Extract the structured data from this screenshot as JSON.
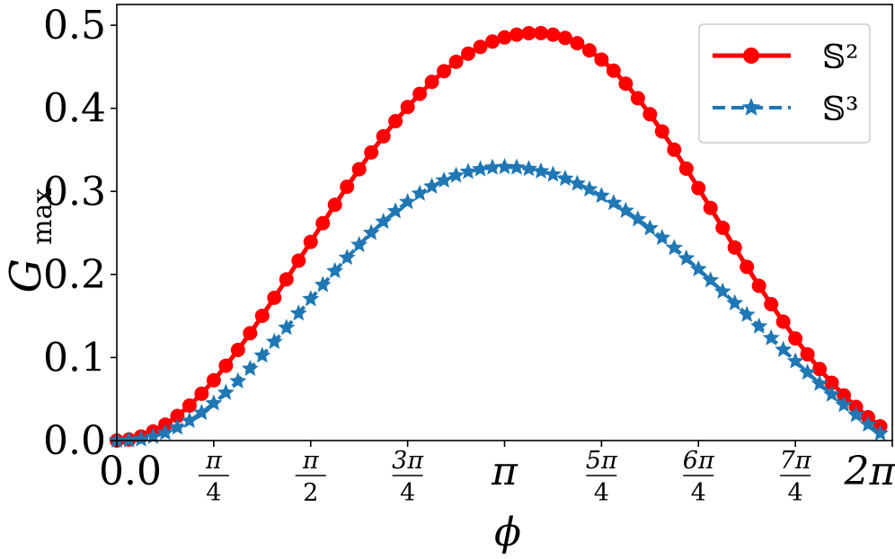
{
  "chart_data": {
    "type": "line",
    "title": "",
    "xlabel": "ϕ",
    "ylabel_main": "G",
    "ylabel_sub": "max",
    "xlim": [
      0,
      6.2832
    ],
    "ylim": [
      0,
      0.525
    ],
    "grid": false,
    "legend_placement": "top-right",
    "x_ticks": [
      {
        "value": 0,
        "text": "0.0"
      },
      {
        "value": 0.7854,
        "num": "π",
        "den": "4"
      },
      {
        "value": 1.5708,
        "num": "π",
        "den": "2"
      },
      {
        "value": 2.3562,
        "num": "3π",
        "den": "4"
      },
      {
        "value": 3.1416,
        "text": "π"
      },
      {
        "value": 3.927,
        "num": "5π",
        "den": "4"
      },
      {
        "value": 4.7124,
        "num": "6π",
        "den": "4"
      },
      {
        "value": 5.4978,
        "num": "7π",
        "den": "4"
      },
      {
        "value": 6.2832,
        "text": "2π"
      }
    ],
    "y_ticks": [
      {
        "value": 0.0,
        "text": "0.0"
      },
      {
        "value": 0.1,
        "text": "0.1"
      },
      {
        "value": 0.2,
        "text": "0.2"
      },
      {
        "value": 0.3,
        "text": "0.3"
      },
      {
        "value": 0.4,
        "text": "0.4"
      },
      {
        "value": 0.5,
        "text": "0.5"
      }
    ],
    "series": [
      {
        "name": "𝕊²",
        "color": "#ff0000",
        "line_style": "solid",
        "marker": "circle",
        "x_range": [
          0,
          6.2832
        ],
        "n_points": 64,
        "values": [
          0.0,
          0.0012,
          0.0049,
          0.0109,
          0.0192,
          0.0296,
          0.0421,
          0.0564,
          0.0725,
          0.0901,
          0.1091,
          0.1292,
          0.1502,
          0.1719,
          0.1941,
          0.2166,
          0.2392,
          0.2617,
          0.2839,
          0.3056,
          0.3267,
          0.3469,
          0.3663,
          0.3845,
          0.4016,
          0.4174,
          0.4318,
          0.4447,
          0.456,
          0.4658,
          0.4739,
          0.4804,
          0.4854,
          0.4887,
          0.4905,
          0.4906,
          0.4887,
          0.4847,
          0.4784,
          0.4698,
          0.4587,
          0.4453,
          0.4297,
          0.4122,
          0.3929,
          0.3722,
          0.3502,
          0.3274,
          0.3039,
          0.2801,
          0.2562,
          0.2324,
          0.2091,
          0.1863,
          0.1642,
          0.1431,
          0.1229,
          0.1039,
          0.0861,
          0.0696,
          0.0544,
          0.0405,
          0.0281,
          0.0171
        ]
      },
      {
        "name": "𝕊³",
        "color": "#1f77b4",
        "line_style": "dashed",
        "marker": "star",
        "x_range": [
          0,
          6.2832
        ],
        "n_points": 64,
        "values": [
          0.0,
          0.0003,
          0.0016,
          0.0046,
          0.0093,
          0.0157,
          0.0238,
          0.0335,
          0.0449,
          0.0576,
          0.0715,
          0.0865,
          0.1024,
          0.1189,
          0.1359,
          0.1531,
          0.1704,
          0.1874,
          0.2041,
          0.2202,
          0.2356,
          0.2501,
          0.2636,
          0.2761,
          0.2873,
          0.2973,
          0.3059,
          0.3132,
          0.3191,
          0.3236,
          0.3268,
          0.3287,
          0.3294,
          0.3288,
          0.3271,
          0.3242,
          0.3203,
          0.3153,
          0.3094,
          0.3025,
          0.2947,
          0.2861,
          0.2767,
          0.2665,
          0.2556,
          0.2441,
          0.232,
          0.2194,
          0.2064,
          0.193,
          0.1794,
          0.1655,
          0.1515,
          0.1375,
          0.1234,
          0.1094,
          0.0955,
          0.0819,
          0.0685,
          0.0555,
          0.0429,
          0.0308,
          0.0193,
          0.0085
        ]
      }
    ]
  }
}
